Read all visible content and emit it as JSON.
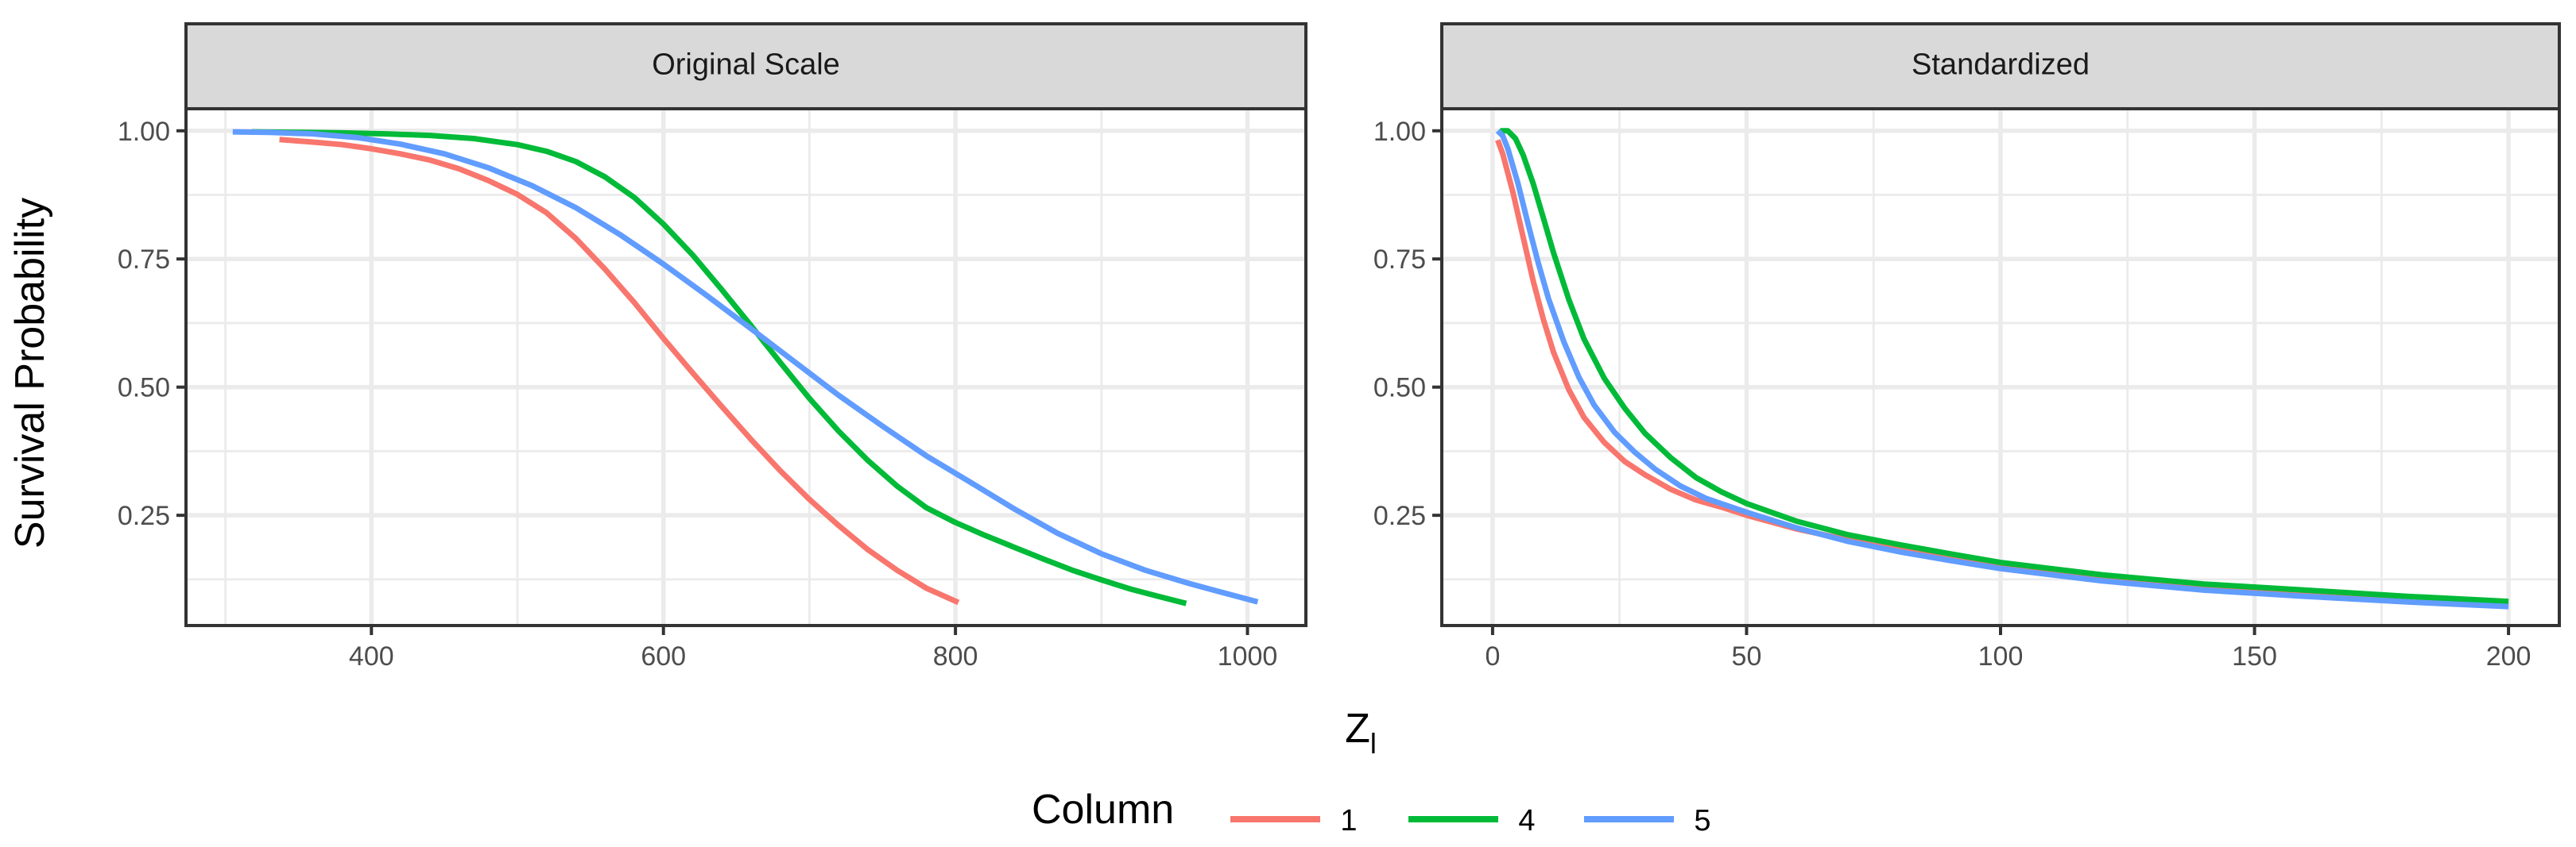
{
  "chart_data": {
    "type": "line",
    "y_axis_title": "Survival Probability",
    "x_axis_title_main": "Z",
    "x_axis_title_subscript": "l",
    "legend": {
      "title": "Column",
      "entries": [
        {
          "label": "1",
          "color": "#F8766D"
        },
        {
          "label": "4",
          "color": "#00BA38"
        },
        {
          "label": "5",
          "color": "#619CFF"
        }
      ]
    },
    "facets": [
      {
        "strip_label": "Original Scale",
        "xlim": [
          273,
          1040
        ],
        "ylim": [
          0.035,
          1.043
        ],
        "x_ticks": [
          400,
          600,
          800,
          1000
        ],
        "x_tick_labels": [
          "400",
          "600",
          "800",
          "1000"
        ],
        "x_minor": [
          300,
          500,
          700,
          900
        ],
        "y_ticks": [
          0.25,
          0.5,
          0.75,
          1.0
        ],
        "y_tick_labels": [
          "0.25",
          "0.50",
          "0.75",
          "1.00"
        ],
        "y_minor": [
          0.125,
          0.375,
          0.625,
          0.875
        ],
        "series": [
          {
            "name": "1",
            "color": "#F8766D",
            "points": [
              [
                337,
                0.983
              ],
              [
                360,
                0.978
              ],
              [
                380,
                0.973
              ],
              [
                400,
                0.965
              ],
              [
                420,
                0.955
              ],
              [
                440,
                0.943
              ],
              [
                460,
                0.926
              ],
              [
                480,
                0.903
              ],
              [
                500,
                0.876
              ],
              [
                520,
                0.84
              ],
              [
                540,
                0.79
              ],
              [
                560,
                0.73
              ],
              [
                580,
                0.665
              ],
              [
                600,
                0.595
              ],
              [
                620,
                0.528
              ],
              [
                640,
                0.462
              ],
              [
                660,
                0.398
              ],
              [
                680,
                0.337
              ],
              [
                700,
                0.281
              ],
              [
                720,
                0.23
              ],
              [
                740,
                0.183
              ],
              [
                760,
                0.143
              ],
              [
                780,
                0.108
              ],
              [
                802,
                0.08
              ]
            ]
          },
          {
            "name": "4",
            "color": "#00BA38",
            "points": [
              [
                318,
                0.998
              ],
              [
                350,
                0.997
              ],
              [
                380,
                0.996
              ],
              [
                410,
                0.994
              ],
              [
                440,
                0.991
              ],
              [
                470,
                0.985
              ],
              [
                500,
                0.973
              ],
              [
                520,
                0.96
              ],
              [
                540,
                0.94
              ],
              [
                560,
                0.91
              ],
              [
                580,
                0.87
              ],
              [
                600,
                0.818
              ],
              [
                620,
                0.758
              ],
              [
                640,
                0.69
              ],
              [
                660,
                0.62
              ],
              [
                680,
                0.548
              ],
              [
                700,
                0.478
              ],
              [
                720,
                0.414
              ],
              [
                740,
                0.357
              ],
              [
                760,
                0.307
              ],
              [
                780,
                0.265
              ],
              [
                800,
                0.236
              ],
              [
                820,
                0.211
              ],
              [
                840,
                0.188
              ],
              [
                860,
                0.165
              ],
              [
                880,
                0.143
              ],
              [
                900,
                0.124
              ],
              [
                920,
                0.106
              ],
              [
                940,
                0.091
              ],
              [
                958,
                0.078
              ]
            ]
          },
          {
            "name": "5",
            "color": "#619CFF",
            "points": [
              [
                305,
                0.998
              ],
              [
                330,
                0.997
              ],
              [
                360,
                0.994
              ],
              [
                390,
                0.987
              ],
              [
                420,
                0.974
              ],
              [
                450,
                0.955
              ],
              [
                480,
                0.928
              ],
              [
                510,
                0.893
              ],
              [
                540,
                0.85
              ],
              [
                570,
                0.798
              ],
              [
                600,
                0.74
              ],
              [
                630,
                0.678
              ],
              [
                660,
                0.614
              ],
              [
                690,
                0.549
              ],
              [
                720,
                0.484
              ],
              [
                750,
                0.424
              ],
              [
                780,
                0.366
              ],
              [
                810,
                0.315
              ],
              [
                840,
                0.263
              ],
              [
                870,
                0.215
              ],
              [
                900,
                0.175
              ],
              [
                930,
                0.143
              ],
              [
                960,
                0.117
              ],
              [
                990,
                0.094
              ],
              [
                1007,
                0.081
              ]
            ]
          }
        ]
      },
      {
        "strip_label": "Standardized",
        "xlim": [
          -10,
          210
        ],
        "ylim": [
          0.035,
          1.043
        ],
        "x_ticks": [
          0,
          50,
          100,
          150,
          200
        ],
        "x_tick_labels": [
          "0",
          "50",
          "100",
          "150",
          "200"
        ],
        "x_minor": [
          25,
          75,
          125,
          175
        ],
        "y_ticks": [
          0.25,
          0.5,
          0.75,
          1.0
        ],
        "y_tick_labels": [
          "0.25",
          "0.50",
          "0.75",
          "1.00"
        ],
        "y_minor": [
          0.125,
          0.375,
          0.625,
          0.875
        ],
        "series": [
          {
            "name": "1",
            "color": "#F8766D",
            "points": [
              [
                1,
                0.982
              ],
              [
                2,
                0.955
              ],
              [
                4,
                0.88
              ],
              [
                6,
                0.793
              ],
              [
                8,
                0.707
              ],
              [
                10,
                0.632
              ],
              [
                12,
                0.568
              ],
              [
                15,
                0.495
              ],
              [
                18,
                0.441
              ],
              [
                22,
                0.392
              ],
              [
                26,
                0.355
              ],
              [
                30,
                0.329
              ],
              [
                35,
                0.301
              ],
              [
                40,
                0.28
              ],
              [
                45,
                0.266
              ],
              [
                50,
                0.25
              ],
              [
                60,
                0.223
              ],
              [
                70,
                0.202
              ],
              [
                80,
                0.184
              ],
              [
                90,
                0.166
              ],
              [
                100,
                0.15
              ],
              [
                120,
                0.126
              ],
              [
                140,
                0.109
              ],
              [
                160,
                0.097
              ],
              [
                180,
                0.086
              ],
              [
                200,
                0.077
              ]
            ]
          },
          {
            "name": "4",
            "color": "#00BA38",
            "points": [
              [
                1.5,
                1.0
              ],
              [
                3,
                1.0
              ],
              [
                4.5,
                0.985
              ],
              [
                6,
                0.953
              ],
              [
                8,
                0.897
              ],
              [
                10,
                0.83
              ],
              [
                12,
                0.762
              ],
              [
                15,
                0.671
              ],
              [
                18,
                0.594
              ],
              [
                22,
                0.517
              ],
              [
                26,
                0.459
              ],
              [
                30,
                0.41
              ],
              [
                35,
                0.363
              ],
              [
                40,
                0.324
              ],
              [
                45,
                0.296
              ],
              [
                50,
                0.273
              ],
              [
                60,
                0.238
              ],
              [
                70,
                0.212
              ],
              [
                80,
                0.193
              ],
              [
                90,
                0.175
              ],
              [
                100,
                0.158
              ],
              [
                120,
                0.134
              ],
              [
                140,
                0.116
              ],
              [
                160,
                0.104
              ],
              [
                180,
                0.092
              ],
              [
                200,
                0.082
              ]
            ]
          },
          {
            "name": "5",
            "color": "#619CFF",
            "points": [
              [
                1,
                1.0
              ],
              [
                2,
                0.99
              ],
              [
                3,
                0.965
              ],
              [
                5,
                0.897
              ],
              [
                7,
                0.818
              ],
              [
                9,
                0.742
              ],
              [
                11,
                0.673
              ],
              [
                14,
                0.589
              ],
              [
                17,
                0.519
              ],
              [
                20,
                0.465
              ],
              [
                24,
                0.412
              ],
              [
                28,
                0.373
              ],
              [
                32,
                0.34
              ],
              [
                37,
                0.307
              ],
              [
                42,
                0.283
              ],
              [
                50,
                0.256
              ],
              [
                60,
                0.225
              ],
              [
                70,
                0.199
              ],
              [
                80,
                0.179
              ],
              [
                90,
                0.162
              ],
              [
                100,
                0.146
              ],
              [
                120,
                0.122
              ],
              [
                140,
                0.104
              ],
              [
                160,
                0.092
              ],
              [
                180,
                0.081
              ],
              [
                200,
                0.072
              ]
            ]
          }
        ]
      }
    ]
  }
}
